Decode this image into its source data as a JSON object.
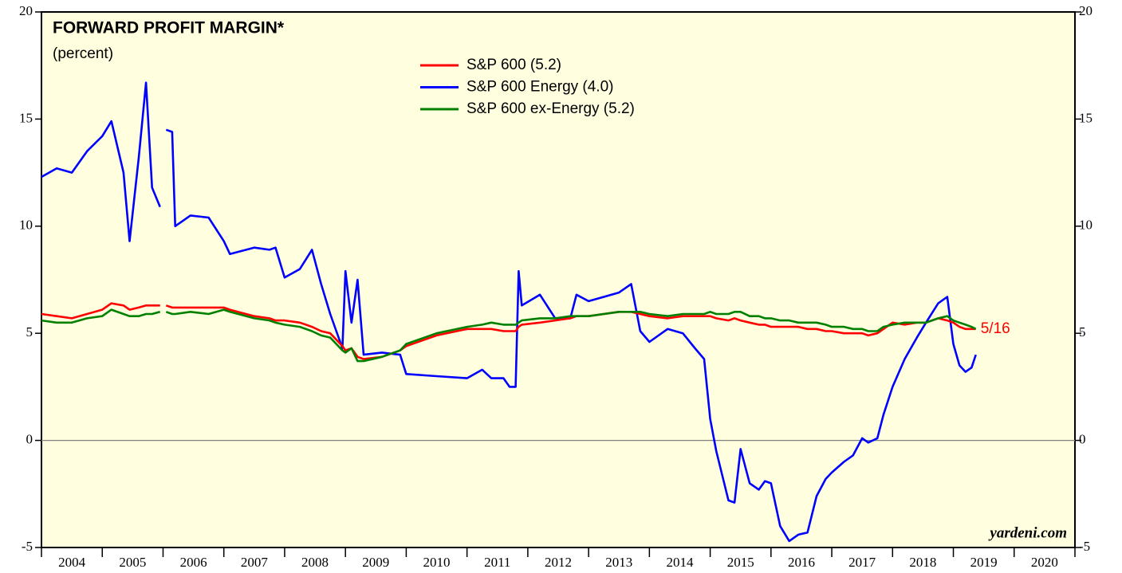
{
  "chart_data": {
    "type": "line",
    "title": "FORWARD PROFIT MARGIN*",
    "subtitle": "(percent)",
    "annotation": "5/16",
    "watermark": "yardeni.com",
    "x": [
      2004,
      2004.25,
      2004.5,
      2004.75,
      2005,
      2005.15,
      2005.35,
      2005.45,
      2005.6,
      2005.72,
      2005.82,
      2005.95,
      2006,
      2006.05,
      2006.15,
      2006.2,
      2006.45,
      2006.75,
      2007,
      2007.1,
      2007.5,
      2007.75,
      2007.85,
      2008,
      2008.25,
      2008.45,
      2008.6,
      2008.75,
      2008.95,
      2009,
      2009.1,
      2009.2,
      2009.3,
      2009.6,
      2009.9,
      2010,
      2010.5,
      2011,
      2011.25,
      2011.4,
      2011.6,
      2011.7,
      2011.8,
      2011.85,
      2011.9,
      2012.2,
      2012.45,
      2012.7,
      2012.8,
      2013,
      2013.5,
      2013.7,
      2013.85,
      2014,
      2014.3,
      2014.55,
      2014.75,
      2014.9,
      2015,
      2015.1,
      2015.3,
      2015.4,
      2015.5,
      2015.65,
      2015.8,
      2015.9,
      2016,
      2016.15,
      2016.3,
      2016.45,
      2016.6,
      2016.75,
      2016.9,
      2017,
      2017.2,
      2017.35,
      2017.5,
      2017.6,
      2017.75,
      2017.85,
      2018,
      2018.2,
      2018.4,
      2018.55,
      2018.75,
      2018.9,
      2019,
      2019.1,
      2019.2,
      2019.3,
      2019.37
    ],
    "series": [
      {
        "name": "S&P 600 (5.2)",
        "color": "#ff0000",
        "values": [
          5.9,
          5.8,
          5.7,
          5.9,
          6.1,
          6.4,
          6.3,
          6.1,
          6.2,
          6.3,
          6.3,
          6.3,
          null,
          6.3,
          6.2,
          6.2,
          6.2,
          6.2,
          6.2,
          6.1,
          5.8,
          5.7,
          5.6,
          5.6,
          5.5,
          5.3,
          5.1,
          5.0,
          4.4,
          4.2,
          4.3,
          3.9,
          3.8,
          3.9,
          4.2,
          4.4,
          4.9,
          5.2,
          5.2,
          5.2,
          5.1,
          5.1,
          5.1,
          5.3,
          5.4,
          5.5,
          5.6,
          5.7,
          5.8,
          5.8,
          6.0,
          6.0,
          5.9,
          5.8,
          5.7,
          5.8,
          5.8,
          5.8,
          5.8,
          5.7,
          5.6,
          5.7,
          5.6,
          5.5,
          5.4,
          5.4,
          5.3,
          5.3,
          5.3,
          5.3,
          5.2,
          5.2,
          5.1,
          5.1,
          5.0,
          5.0,
          5.0,
          4.9,
          5.0,
          5.2,
          5.5,
          5.4,
          5.5,
          5.5,
          5.7,
          5.6,
          5.5,
          5.3,
          5.2,
          5.2,
          5.2
        ]
      },
      {
        "name": "S&P 600 Energy (4.0)",
        "color": "#0000ff",
        "values": [
          12.3,
          12.7,
          12.5,
          13.5,
          14.2,
          14.9,
          12.5,
          9.3,
          13.2,
          16.7,
          11.8,
          10.9,
          null,
          14.5,
          14.4,
          10.0,
          10.5,
          10.4,
          9.3,
          8.7,
          9.0,
          8.9,
          9.0,
          7.6,
          8.0,
          8.9,
          7.3,
          5.9,
          4.3,
          7.9,
          5.5,
          7.5,
          4.0,
          4.1,
          4.0,
          3.1,
          3.0,
          2.9,
          3.3,
          2.9,
          2.9,
          2.5,
          2.5,
          7.9,
          6.3,
          6.8,
          5.7,
          5.7,
          6.8,
          6.5,
          6.9,
          7.3,
          5.1,
          4.6,
          5.2,
          5.0,
          4.3,
          3.8,
          1.0,
          -0.5,
          -2.8,
          -2.9,
          -0.4,
          -2.0,
          -2.3,
          -1.9,
          -2.0,
          -4.0,
          -4.7,
          -4.4,
          -4.3,
          -2.6,
          -1.8,
          -1.5,
          -1.0,
          -0.7,
          0.1,
          -0.1,
          0.1,
          1.2,
          2.5,
          3.8,
          4.8,
          5.5,
          6.4,
          6.7,
          4.5,
          3.5,
          3.2,
          3.4,
          4.0
        ]
      },
      {
        "name": "S&P 600 ex-Energy (5.2)",
        "color": "#008000",
        "values": [
          5.6,
          5.5,
          5.5,
          5.7,
          5.8,
          6.1,
          5.9,
          5.8,
          5.8,
          5.9,
          5.9,
          6.0,
          null,
          6.0,
          5.9,
          5.9,
          6.0,
          5.9,
          6.1,
          6.0,
          5.7,
          5.6,
          5.5,
          5.4,
          5.3,
          5.1,
          4.9,
          4.8,
          4.2,
          4.1,
          4.3,
          3.7,
          3.7,
          3.9,
          4.2,
          4.5,
          5.0,
          5.3,
          5.4,
          5.5,
          5.4,
          5.4,
          5.4,
          5.5,
          5.6,
          5.7,
          5.7,
          5.8,
          5.8,
          5.8,
          6.0,
          6.0,
          6.0,
          5.9,
          5.8,
          5.9,
          5.9,
          5.9,
          6.0,
          5.9,
          5.9,
          6.0,
          6.0,
          5.8,
          5.8,
          5.7,
          5.7,
          5.6,
          5.6,
          5.5,
          5.5,
          5.5,
          5.4,
          5.3,
          5.3,
          5.2,
          5.2,
          5.1,
          5.1,
          5.3,
          5.4,
          5.5,
          5.5,
          5.5,
          5.7,
          5.8,
          5.6,
          5.5,
          5.4,
          5.3,
          5.2
        ]
      }
    ],
    "xlim": [
      2004,
      2021
    ],
    "xticks": [
      2004,
      2005,
      2006,
      2007,
      2008,
      2009,
      2010,
      2011,
      2012,
      2013,
      2014,
      2015,
      2016,
      2017,
      2018,
      2019,
      2020,
      2021
    ],
    "year_labels": [
      2004,
      2005,
      2006,
      2007,
      2008,
      2009,
      2010,
      2011,
      2012,
      2013,
      2014,
      2015,
      2016,
      2017,
      2018,
      2019,
      2020
    ],
    "ylim": [
      -5,
      20
    ],
    "yticks": [
      -5,
      0,
      5,
      10,
      15,
      20
    ],
    "reference_line": 0,
    "background": "#ffffe0"
  }
}
